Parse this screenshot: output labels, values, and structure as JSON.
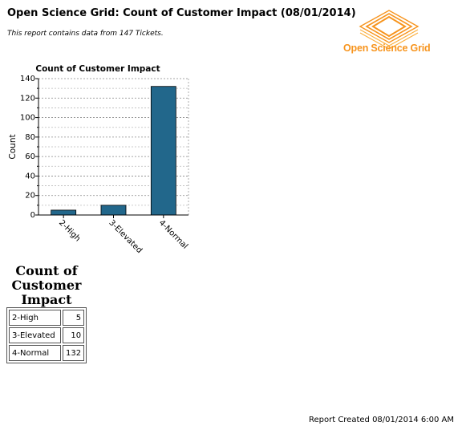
{
  "header": {
    "title": "Open Science Grid: Count of Customer Impact (08/01/2014)",
    "subtitle": "This report contains data from 147 Tickets."
  },
  "logo": {
    "text": "Open Science Grid",
    "color": "#f7941d"
  },
  "chart_data": {
    "type": "bar",
    "title": "Count of Customer Impact",
    "xlabel": "",
    "ylabel": "Count",
    "categories": [
      "2-High",
      "3-Elevated",
      "4-Normal"
    ],
    "values": [
      5,
      10,
      132
    ],
    "ylim": [
      0,
      140
    ],
    "yticks": [
      0,
      20,
      40,
      60,
      80,
      100,
      120,
      140
    ],
    "bar_color": "#22678b",
    "grid": true
  },
  "table": {
    "title": "Count of Customer Impact",
    "rows": [
      {
        "label": "2-High",
        "value": "5"
      },
      {
        "label": "3-Elevated",
        "value": "10"
      },
      {
        "label": "4-Normal",
        "value": "132"
      }
    ]
  },
  "footer": {
    "text": "Report Created 08/01/2014 6:00 AM"
  }
}
